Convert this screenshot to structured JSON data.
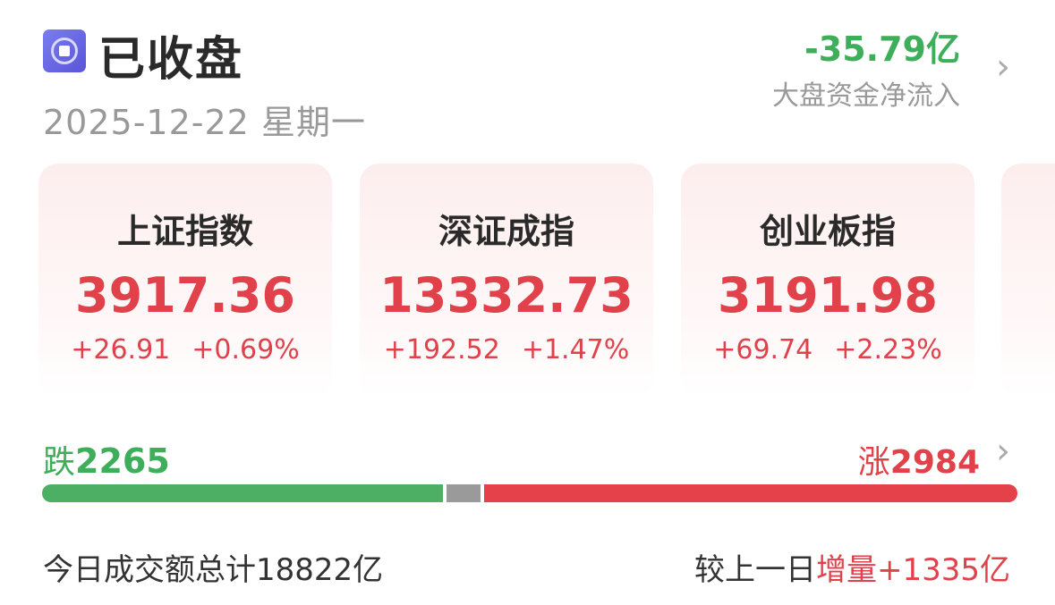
{
  "header": {
    "status": "已收盘",
    "date": "2025-12-22",
    "weekday": "星期一",
    "status_icon": "stop-circle-icon"
  },
  "fund_flow": {
    "value": "-35.79亿",
    "label": "大盘资金净流入",
    "color": "#3fae5a"
  },
  "indices": [
    {
      "name": "上证指数",
      "price": "3917.36",
      "change": "+26.91",
      "pct": "+0.69%"
    },
    {
      "name": "深证成指",
      "price": "13332.73",
      "change": "+192.52",
      "pct": "+1.47%"
    },
    {
      "name": "创业板指",
      "price": "3191.98",
      "change": "+69.74",
      "pct": "+2.23%"
    }
  ],
  "breadth": {
    "fall_label": "跌",
    "fall": "2265",
    "rise_label": "涨",
    "rise": "2984",
    "bar_fractions": {
      "fall": 0.414,
      "flat": 0.035,
      "rise": 0.551
    }
  },
  "turnover": {
    "label": "今日成交额总计",
    "value": "18822亿",
    "compare_label": "较上一日",
    "change_label": "增量",
    "change": "+1335亿"
  },
  "colors": {
    "up": "#e0414a",
    "down": "#3fae5a",
    "flat": "#9a9a9a"
  }
}
